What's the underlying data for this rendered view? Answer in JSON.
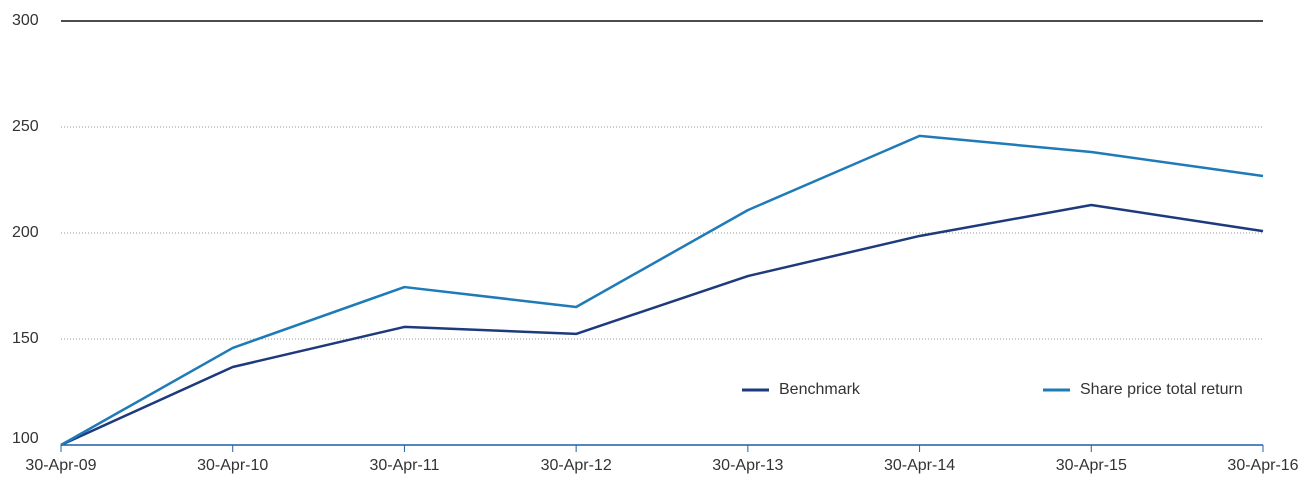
{
  "chart_data": {
    "type": "line",
    "categories": [
      "30-Apr-09",
      "30-Apr-10",
      "30-Apr-11",
      "30-Apr-12",
      "30-Apr-13",
      "30-Apr-14",
      "30-Apr-15",
      "30-Apr-16"
    ],
    "series": [
      {
        "name": "Benchmark",
        "color": "#1d3a7c",
        "values": [
          100,
          136.8,
          155.7,
          152.4,
          179.7,
          198.6,
          213.2,
          200.9
        ]
      },
      {
        "name": "Share price total return",
        "color": "#1f7ab8",
        "values": [
          100,
          145.8,
          174.5,
          165.1,
          210.8,
          245.8,
          238.2,
          226.9
        ]
      }
    ],
    "ylim": [
      100,
      300
    ],
    "yticks": [
      100,
      150,
      200,
      250,
      300
    ],
    "grid": true,
    "legend": "lower right"
  }
}
